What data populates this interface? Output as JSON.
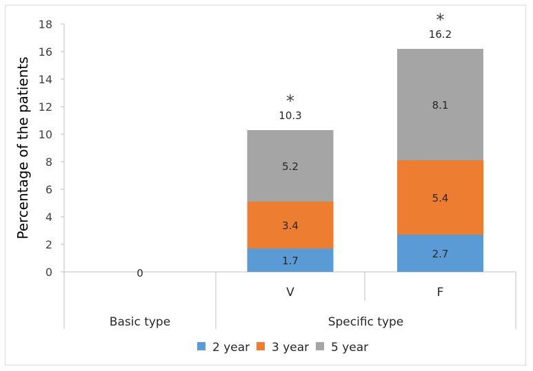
{
  "chart_data": {
    "type": "bar",
    "stacked": true,
    "ylabel": "Percentage of the patients",
    "ylim": [
      0,
      18
    ],
    "yticks": [
      0,
      2,
      4,
      6,
      8,
      10,
      12,
      14,
      16,
      18
    ],
    "grid": false,
    "legend_position": "bottom",
    "categories": [
      {
        "label": "",
        "group": "Basic type"
      },
      {
        "label": "V",
        "group": "Specific type"
      },
      {
        "label": "F",
        "group": "Specific type"
      }
    ],
    "groups": [
      "Basic type",
      "Specific type"
    ],
    "series": [
      {
        "name": "2 year",
        "color": "#5b9bd5",
        "values": [
          0,
          1.7,
          2.7
        ]
      },
      {
        "name": "3 year",
        "color": "#ed7d31",
        "values": [
          0,
          3.4,
          5.4
        ]
      },
      {
        "name": "5 year",
        "color": "#a5a5a5",
        "values": [
          0,
          5.2,
          8.1
        ]
      }
    ],
    "totals": [
      "0",
      "10.3",
      "16.2"
    ],
    "significance": [
      "",
      "*",
      "*"
    ]
  }
}
